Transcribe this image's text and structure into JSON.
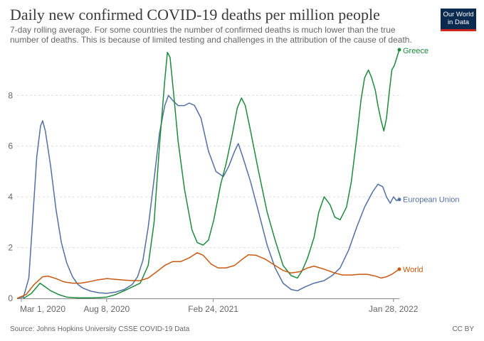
{
  "header": {
    "title": "Daily new confirmed COVID-19 deaths per million people",
    "subtitle": "7-day rolling average. For some countries the number of confirmed deaths is much lower than the true number of deaths. This is because of limited testing and challenges in the attribution of the cause of death.",
    "logo_line1": "Our World",
    "logo_line2": "in Data"
  },
  "footer": {
    "source": "Source: Johns Hopkins University CSSE COVID-19 Data",
    "license": "CC BY"
  },
  "colors": {
    "Greece": "#1e8a3c",
    "European Union": "#5270a3",
    "World": "#c85a13",
    "grid": "#dddddd",
    "axis": "#888888",
    "logo_bg": "#0b2a4f",
    "logo_accent": "#ce261e"
  },
  "chart_data": {
    "type": "line",
    "xlabel": "",
    "ylabel": "",
    "x_ticks": [
      "Mar 1, 2020",
      "Aug 8, 2020",
      "Feb 24, 2021",
      "Jan 28, 2022"
    ],
    "y_ticks": [
      "0",
      "2",
      "4",
      "6",
      "8"
    ],
    "ylim": [
      0,
      9.8
    ],
    "grid": "horizontal dashed",
    "legend": "labels at line ends (right)",
    "series": [
      {
        "name": "European Union",
        "points": [
          [
            "2020-02-22",
            0.0
          ],
          [
            "2020-03-05",
            0.05
          ],
          [
            "2020-03-15",
            0.8
          ],
          [
            "2020-03-22",
            3.0
          ],
          [
            "2020-03-30",
            5.6
          ],
          [
            "2020-04-06",
            6.8
          ],
          [
            "2020-04-10",
            7.0
          ],
          [
            "2020-04-15",
            6.6
          ],
          [
            "2020-04-25",
            5.2
          ],
          [
            "2020-05-05",
            3.5
          ],
          [
            "2020-05-15",
            2.2
          ],
          [
            "2020-05-25",
            1.4
          ],
          [
            "2020-06-05",
            0.85
          ],
          [
            "2020-06-15",
            0.55
          ],
          [
            "2020-06-25",
            0.4
          ],
          [
            "2020-07-10",
            0.28
          ],
          [
            "2020-07-25",
            0.22
          ],
          [
            "2020-08-08",
            0.2
          ],
          [
            "2020-08-25",
            0.25
          ],
          [
            "2020-09-10",
            0.35
          ],
          [
            "2020-09-25",
            0.55
          ],
          [
            "2020-10-05",
            0.85
          ],
          [
            "2020-10-15",
            1.5
          ],
          [
            "2020-10-25",
            2.8
          ],
          [
            "2020-11-05",
            4.7
          ],
          [
            "2020-11-15",
            6.5
          ],
          [
            "2020-11-25",
            7.6
          ],
          [
            "2020-12-02",
            8.0
          ],
          [
            "2020-12-10",
            7.8
          ],
          [
            "2020-12-20",
            7.6
          ],
          [
            "2021-01-01",
            7.6
          ],
          [
            "2021-01-10",
            7.7
          ],
          [
            "2021-01-20",
            7.6
          ],
          [
            "2021-02-01",
            7.1
          ],
          [
            "2021-02-15",
            5.8
          ],
          [
            "2021-03-01",
            5.0
          ],
          [
            "2021-03-15",
            4.8
          ],
          [
            "2021-03-25",
            5.2
          ],
          [
            "2021-04-05",
            5.8
          ],
          [
            "2021-04-12",
            6.1
          ],
          [
            "2021-04-20",
            5.6
          ],
          [
            "2021-05-05",
            4.6
          ],
          [
            "2021-05-20",
            3.4
          ],
          [
            "2021-06-05",
            2.1
          ],
          [
            "2021-06-20",
            1.2
          ],
          [
            "2021-07-05",
            0.6
          ],
          [
            "2021-07-20",
            0.35
          ],
          [
            "2021-08-01",
            0.3
          ],
          [
            "2021-08-15",
            0.45
          ],
          [
            "2021-09-01",
            0.6
          ],
          [
            "2021-09-20",
            0.7
          ],
          [
            "2021-10-05",
            0.9
          ],
          [
            "2021-10-20",
            1.2
          ],
          [
            "2021-11-05",
            1.9
          ],
          [
            "2021-11-20",
            2.8
          ],
          [
            "2021-12-05",
            3.6
          ],
          [
            "2021-12-20",
            4.2
          ],
          [
            "2021-12-30",
            4.5
          ],
          [
            "2022-01-08",
            4.4
          ],
          [
            "2022-01-15",
            4.0
          ],
          [
            "2022-01-22",
            3.75
          ],
          [
            "2022-01-28",
            4.0
          ],
          [
            "2022-02-03",
            3.85
          ],
          [
            "2022-02-08",
            3.9
          ]
        ]
      },
      {
        "name": "Greece",
        "points": [
          [
            "2020-03-05",
            0.0
          ],
          [
            "2020-03-20",
            0.2
          ],
          [
            "2020-04-05",
            0.6
          ],
          [
            "2020-04-15",
            0.45
          ],
          [
            "2020-04-25",
            0.3
          ],
          [
            "2020-05-10",
            0.15
          ],
          [
            "2020-05-25",
            0.05
          ],
          [
            "2020-06-15",
            0.02
          ],
          [
            "2020-07-15",
            0.02
          ],
          [
            "2020-08-08",
            0.05
          ],
          [
            "2020-08-25",
            0.15
          ],
          [
            "2020-09-10",
            0.3
          ],
          [
            "2020-09-25",
            0.45
          ],
          [
            "2020-10-10",
            0.6
          ],
          [
            "2020-10-25",
            1.3
          ],
          [
            "2020-11-05",
            3.0
          ],
          [
            "2020-11-15",
            6.0
          ],
          [
            "2020-11-25",
            8.6
          ],
          [
            "2020-11-30",
            9.7
          ],
          [
            "2020-12-05",
            9.5
          ],
          [
            "2020-12-12",
            8.0
          ],
          [
            "2020-12-20",
            6.2
          ],
          [
            "2021-01-01",
            4.3
          ],
          [
            "2021-01-15",
            2.7
          ],
          [
            "2021-01-25",
            2.2
          ],
          [
            "2021-02-05",
            2.1
          ],
          [
            "2021-02-15",
            2.3
          ],
          [
            "2021-02-25",
            3.1
          ],
          [
            "2021-03-10",
            4.5
          ],
          [
            "2021-03-20",
            5.3
          ],
          [
            "2021-04-01",
            6.5
          ],
          [
            "2021-04-10",
            7.5
          ],
          [
            "2021-04-18",
            7.9
          ],
          [
            "2021-04-25",
            7.6
          ],
          [
            "2021-05-05",
            6.6
          ],
          [
            "2021-05-20",
            5.0
          ],
          [
            "2021-06-05",
            3.4
          ],
          [
            "2021-06-20",
            2.3
          ],
          [
            "2021-07-05",
            1.3
          ],
          [
            "2021-07-20",
            0.9
          ],
          [
            "2021-08-01",
            0.8
          ],
          [
            "2021-08-10",
            1.1
          ],
          [
            "2021-08-20",
            1.6
          ],
          [
            "2021-09-01",
            2.4
          ],
          [
            "2021-09-10",
            3.4
          ],
          [
            "2021-09-20",
            4.0
          ],
          [
            "2021-10-01",
            3.7
          ],
          [
            "2021-10-10",
            3.2
          ],
          [
            "2021-10-20",
            3.1
          ],
          [
            "2021-11-01",
            3.6
          ],
          [
            "2021-11-10",
            4.6
          ],
          [
            "2021-11-20",
            6.3
          ],
          [
            "2021-11-28",
            7.8
          ],
          [
            "2021-12-05",
            8.7
          ],
          [
            "2021-12-12",
            9.0
          ],
          [
            "2021-12-18",
            8.7
          ],
          [
            "2021-12-25",
            8.2
          ],
          [
            "2021-12-30",
            7.6
          ],
          [
            "2022-01-05",
            7.0
          ],
          [
            "2022-01-10",
            6.6
          ],
          [
            "2022-01-15",
            7.1
          ],
          [
            "2022-01-20",
            8.1
          ],
          [
            "2022-01-25",
            9.0
          ],
          [
            "2022-01-30",
            9.2
          ],
          [
            "2022-02-08",
            9.8
          ]
        ]
      },
      {
        "name": "World",
        "points": [
          [
            "2020-02-22",
            0.0
          ],
          [
            "2020-03-10",
            0.15
          ],
          [
            "2020-03-25",
            0.55
          ],
          [
            "2020-04-10",
            0.85
          ],
          [
            "2020-04-20",
            0.88
          ],
          [
            "2020-05-05",
            0.78
          ],
          [
            "2020-05-20",
            0.65
          ],
          [
            "2020-06-05",
            0.6
          ],
          [
            "2020-06-20",
            0.6
          ],
          [
            "2020-07-05",
            0.65
          ],
          [
            "2020-07-20",
            0.72
          ],
          [
            "2020-08-08",
            0.78
          ],
          [
            "2020-08-25",
            0.75
          ],
          [
            "2020-09-10",
            0.72
          ],
          [
            "2020-09-25",
            0.7
          ],
          [
            "2020-10-10",
            0.7
          ],
          [
            "2020-10-25",
            0.8
          ],
          [
            "2020-11-10",
            1.05
          ],
          [
            "2020-11-25",
            1.3
          ],
          [
            "2020-12-10",
            1.45
          ],
          [
            "2020-12-25",
            1.45
          ],
          [
            "2021-01-10",
            1.6
          ],
          [
            "2021-01-25",
            1.8
          ],
          [
            "2021-02-05",
            1.7
          ],
          [
            "2021-02-20",
            1.35
          ],
          [
            "2021-03-05",
            1.2
          ],
          [
            "2021-03-20",
            1.2
          ],
          [
            "2021-04-05",
            1.3
          ],
          [
            "2021-04-20",
            1.55
          ],
          [
            "2021-05-01",
            1.72
          ],
          [
            "2021-05-15",
            1.7
          ],
          [
            "2021-06-01",
            1.55
          ],
          [
            "2021-06-20",
            1.3
          ],
          [
            "2021-07-05",
            1.1
          ],
          [
            "2021-07-20",
            1.0
          ],
          [
            "2021-08-05",
            1.05
          ],
          [
            "2021-08-20",
            1.2
          ],
          [
            "2021-09-01",
            1.27
          ],
          [
            "2021-09-20",
            1.15
          ],
          [
            "2021-10-10",
            1.0
          ],
          [
            "2021-10-25",
            0.92
          ],
          [
            "2021-11-10",
            0.92
          ],
          [
            "2021-11-25",
            0.95
          ],
          [
            "2021-12-10",
            0.95
          ],
          [
            "2021-12-25",
            0.88
          ],
          [
            "2022-01-05",
            0.8
          ],
          [
            "2022-01-15",
            0.85
          ],
          [
            "2022-01-25",
            0.95
          ],
          [
            "2022-02-08",
            1.15
          ]
        ]
      }
    ]
  }
}
